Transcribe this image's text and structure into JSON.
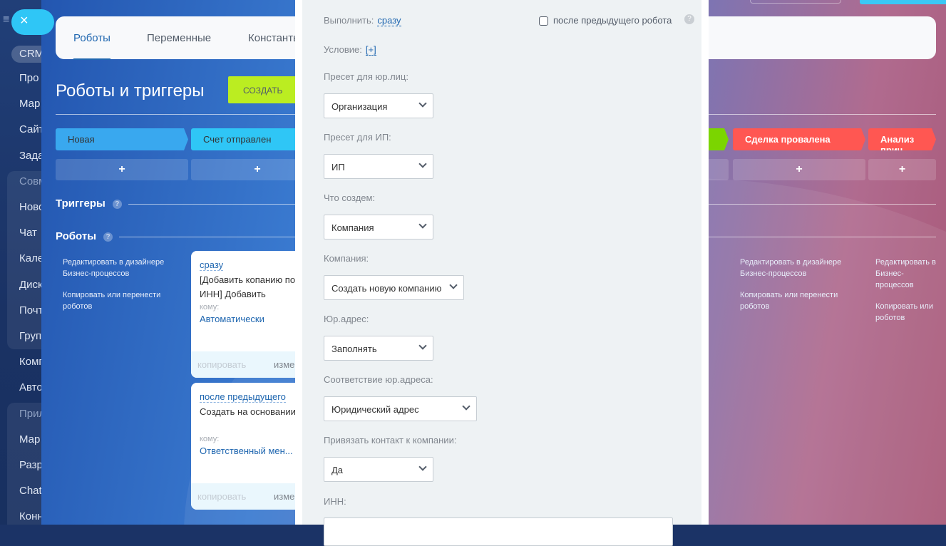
{
  "sidebar": {
    "crm": "CRM",
    "items": [
      "Про",
      "Мар",
      "Сайт",
      "Зада",
      "Совм",
      "Ново",
      "Чат",
      "Кале",
      "Диск",
      "Почт",
      "Груп",
      "Комп",
      "Авто",
      "Прил",
      "Мар",
      "Разр",
      "Chat",
      "Конн"
    ]
  },
  "close_icon": "×",
  "tabs": [
    "Роботы",
    "Переменные",
    "Константы"
  ],
  "page_title": "Роботы и триггеры",
  "create_label": "СОЗДАТЬ",
  "stages": [
    {
      "name": "Новая",
      "color": "#39a8ef"
    },
    {
      "name": "Счет отправлен",
      "color": "#2fc6f6"
    },
    {
      "name": "",
      "color": "#7bd500"
    },
    {
      "name": "Сделка провалена",
      "color": "#ff5752"
    },
    {
      "name": "Анализ прич",
      "color": "#ff5752"
    }
  ],
  "plus": "+",
  "triggers_label": "Триггеры",
  "robots_label": "Роботы",
  "help": "?",
  "column_links": {
    "edit": "Редактировать в дизайнере Бизнес-процессов",
    "copy": "Копировать или перенести роботов"
  },
  "right_links": [
    {
      "edit": "Редактировать в дизайнере Бизнес-процессов",
      "copy": "Копировать или перенести роботов"
    },
    {
      "edit": "Редактировать в Бизнес-процессов",
      "copy": "Копировать или роботов"
    }
  ],
  "robots": [
    {
      "when": "сразу",
      "title": "[Добавить копанию по",
      "title2": "ИНН] Добавить",
      "to": "кому:",
      "who": "Автоматически",
      "copy": "копировать",
      "edit": "изменить"
    },
    {
      "when": "после предыдущего",
      "title": "Создать на основании",
      "title2": "",
      "to": "кому:",
      "who": "Ответственный мен...",
      "copy": "копировать",
      "edit": "изменить"
    }
  ],
  "form": {
    "execute_label": "Выполнить:",
    "execute_value": "сразу",
    "after_prev_label": "после предыдущего робота",
    "after_prev_checked": false,
    "condition_label": "Условие:",
    "condition_value": "[+]",
    "fields": [
      {
        "label": "Пресет для юр.лиц:",
        "value": "Организация"
      },
      {
        "label": "Пресет для ИП:",
        "value": "ИП"
      },
      {
        "label": "Что создем:",
        "value": "Компания"
      },
      {
        "label": "Компания:",
        "value": "Создать новую компанию"
      },
      {
        "label": "Юр.адрес:",
        "value": "Заполнять"
      },
      {
        "label": "Соответствие юр.адреса:",
        "value": "Юридический адрес"
      },
      {
        "label": "Привязать контакт к компании:",
        "value": "Да"
      }
    ],
    "inn_label": "ИНН:",
    "inn_value": ""
  }
}
